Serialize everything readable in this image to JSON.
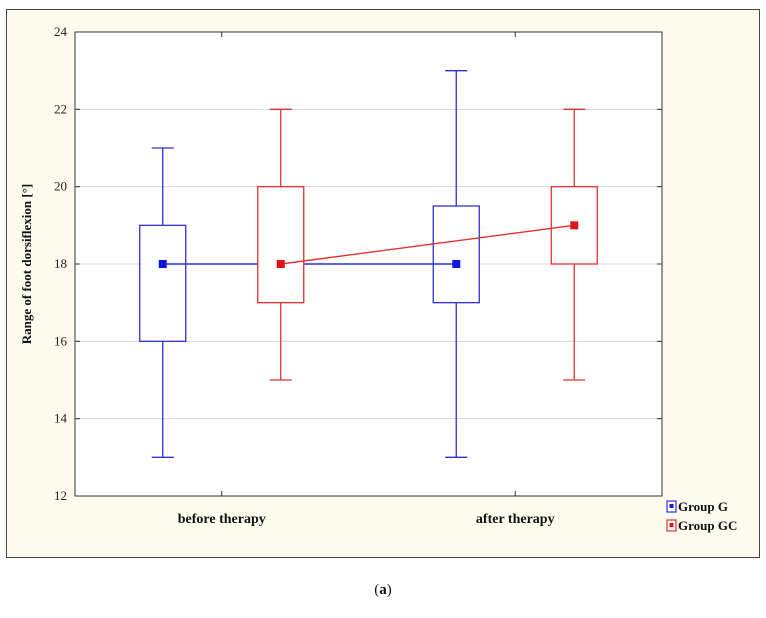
{
  "caption": {
    "open": "(",
    "letter": "a",
    "close": ")"
  },
  "chart_data": {
    "type": "boxplot",
    "title": "",
    "xlabel": "",
    "ylabel": "Range of foot dorsiflexion [°]",
    "ylim": [
      12,
      24
    ],
    "yticks": [
      12,
      14,
      16,
      18,
      20,
      22,
      24
    ],
    "grid": true,
    "legend_position": "bottom-right, outside plot",
    "categories": [
      "before therapy",
      "after therapy"
    ],
    "series": [
      {
        "name": "Group G",
        "color": "#2f2fd9",
        "marker_color": "#1515e0",
        "boxes": [
          {
            "min": 13,
            "q1": 16,
            "median": 18,
            "q3": 19,
            "max": 21
          },
          {
            "min": 13,
            "q1": 17,
            "median": 18,
            "q3": 19.5,
            "max": 23
          }
        ]
      },
      {
        "name": "Group GC",
        "color": "#e23030",
        "marker_color": "#e01515",
        "boxes": [
          {
            "min": 15,
            "q1": 17,
            "median": 18,
            "q3": 20,
            "max": 22
          },
          {
            "min": 15,
            "q1": 18,
            "median": 19,
            "q3": 20,
            "max": 22
          }
        ]
      }
    ]
  }
}
